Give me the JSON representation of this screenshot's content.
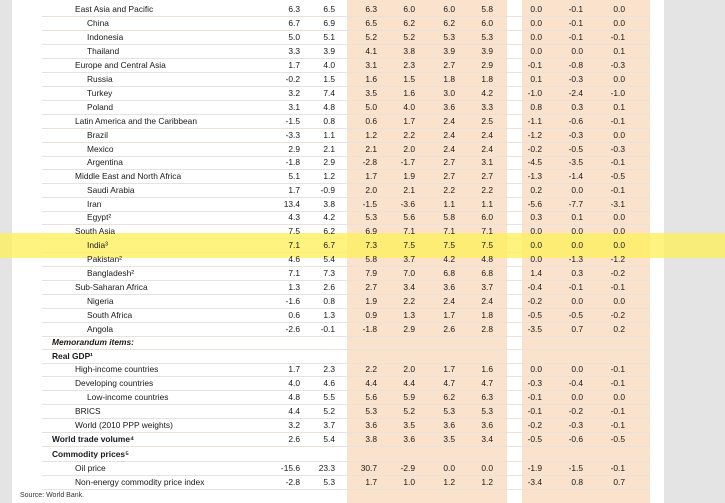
{
  "rows": [
    {
      "label": "East Asia and Pacific",
      "indent": 1,
      "style": "",
      "values": [
        "6.3",
        "6.5",
        "6.3",
        "6.0",
        "6.0",
        "5.8",
        "0.0",
        "-0.1",
        "0.0"
      ]
    },
    {
      "label": "China",
      "indent": 2,
      "style": "",
      "values": [
        "6.7",
        "6.9",
        "6.5",
        "6.2",
        "6.2",
        "6.0",
        "0.0",
        "-0.1",
        "0.0"
      ]
    },
    {
      "label": "Indonesia",
      "indent": 2,
      "style": "",
      "values": [
        "5.0",
        "5.1",
        "5.2",
        "5.2",
        "5.3",
        "5.3",
        "0.0",
        "-0.1",
        "-0.1"
      ]
    },
    {
      "label": "Thailand",
      "indent": 2,
      "style": "",
      "values": [
        "3.3",
        "3.9",
        "4.1",
        "3.8",
        "3.9",
        "3.9",
        "0.0",
        "0.0",
        "0.1"
      ]
    },
    {
      "label": "Europe and Central Asia",
      "indent": 1,
      "style": "",
      "values": [
        "1.7",
        "4.0",
        "3.1",
        "2.3",
        "2.7",
        "2.9",
        "-0.1",
        "-0.8",
        "-0.3"
      ]
    },
    {
      "label": "Russia",
      "indent": 2,
      "style": "",
      "values": [
        "-0.2",
        "1.5",
        "1.6",
        "1.5",
        "1.8",
        "1.8",
        "0.1",
        "-0.3",
        "0.0"
      ]
    },
    {
      "label": "Turkey",
      "indent": 2,
      "style": "",
      "values": [
        "3.2",
        "7.4",
        "3.5",
        "1.6",
        "3.0",
        "4.2",
        "-1.0",
        "-2.4",
        "-1.0"
      ]
    },
    {
      "label": "Poland",
      "indent": 2,
      "style": "",
      "values": [
        "3.1",
        "4.8",
        "5.0",
        "4.0",
        "3.6",
        "3.3",
        "0.8",
        "0.3",
        "0.1"
      ]
    },
    {
      "label": "Latin America and the Caribbean",
      "indent": 1,
      "style": "",
      "values": [
        "-1.5",
        "0.8",
        "0.6",
        "1.7",
        "2.4",
        "2.5",
        "-1.1",
        "-0.6",
        "-0.1"
      ]
    },
    {
      "label": "Brazil",
      "indent": 2,
      "style": "",
      "values": [
        "-3.3",
        "1.1",
        "1.2",
        "2.2",
        "2.4",
        "2.4",
        "-1.2",
        "-0.3",
        "0.0"
      ]
    },
    {
      "label": "Mexico",
      "indent": 2,
      "style": "",
      "values": [
        "2.9",
        "2.1",
        "2.1",
        "2.0",
        "2.4",
        "2.4",
        "-0.2",
        "-0.5",
        "-0.3"
      ]
    },
    {
      "label": "Argentina",
      "indent": 2,
      "style": "",
      "values": [
        "-1.8",
        "2.9",
        "-2.8",
        "-1.7",
        "2.7",
        "3.1",
        "-4.5",
        "-3.5",
        "-0.1"
      ]
    },
    {
      "label": "Middle East and North Africa",
      "indent": 1,
      "style": "",
      "values": [
        "5.1",
        "1.2",
        "1.7",
        "1.9",
        "2.7",
        "2.7",
        "-1.3",
        "-1.4",
        "-0.5"
      ]
    },
    {
      "label": "Saudi Arabia",
      "indent": 2,
      "style": "",
      "values": [
        "1.7",
        "-0.9",
        "2.0",
        "2.1",
        "2.2",
        "2.2",
        "0.2",
        "0.0",
        "-0.1"
      ]
    },
    {
      "label": "Iran",
      "indent": 2,
      "style": "",
      "values": [
        "13.4",
        "3.8",
        "-1.5",
        "-3.6",
        "1.1",
        "1.1",
        "-5.6",
        "-7.7",
        "-3.1"
      ]
    },
    {
      "label": "Egypt²",
      "indent": 2,
      "style": "",
      "values": [
        "4.3",
        "4.2",
        "5.3",
        "5.6",
        "5.8",
        "6.0",
        "0.3",
        "0.1",
        "0.0"
      ]
    },
    {
      "label": "South Asia",
      "indent": 1,
      "style": "",
      "values": [
        "7.5",
        "6.2",
        "6.9",
        "7.1",
        "7.1",
        "7.1",
        "0.0",
        "0.0",
        "0.0"
      ]
    },
    {
      "label": "India³",
      "indent": 2,
      "style": "",
      "values": [
        "7.1",
        "6.7",
        "7.3",
        "7.5",
        "7.5",
        "7.5",
        "0.0",
        "0.0",
        "0.0"
      ]
    },
    {
      "label": "Pakistan²",
      "indent": 2,
      "style": "",
      "values": [
        "4.6",
        "5.4",
        "5.8",
        "3.7",
        "4.2",
        "4.8",
        "0.0",
        "-1.3",
        "-1.2"
      ]
    },
    {
      "label": "Bangladesh²",
      "indent": 2,
      "style": "",
      "values": [
        "7.1",
        "7.3",
        "7.9",
        "7.0",
        "6.8",
        "6.8",
        "1.4",
        "0.3",
        "-0.2"
      ]
    },
    {
      "label": "Sub-Saharan Africa",
      "indent": 1,
      "style": "",
      "values": [
        "1.3",
        "2.6",
        "2.7",
        "3.4",
        "3.6",
        "3.7",
        "-0.4",
        "-0.1",
        "-0.1"
      ]
    },
    {
      "label": "Nigeria",
      "indent": 2,
      "style": "",
      "values": [
        "-1.6",
        "0.8",
        "1.9",
        "2.2",
        "2.4",
        "2.4",
        "-0.2",
        "0.0",
        "0.0"
      ]
    },
    {
      "label": "South Africa",
      "indent": 2,
      "style": "",
      "values": [
        "0.6",
        "1.3",
        "0.9",
        "1.3",
        "1.7",
        "1.8",
        "-0.5",
        "-0.5",
        "-0.2"
      ]
    },
    {
      "label": "Angola",
      "indent": 2,
      "style": "",
      "values": [
        "-2.6",
        "-0.1",
        "-1.8",
        "2.9",
        "2.6",
        "2.8",
        "-3.5",
        "0.7",
        "0.2"
      ]
    },
    {
      "label": "Memorandum items:",
      "indent": 0,
      "style": "bold",
      "values": []
    },
    {
      "label": "Real GDP¹",
      "indent": 0,
      "style": "boldplain",
      "values": []
    },
    {
      "label": "High-income countries",
      "indent": 1,
      "style": "",
      "values": [
        "1.7",
        "2.3",
        "2.2",
        "2.0",
        "1.7",
        "1.6",
        "0.0",
        "0.0",
        "-0.1"
      ]
    },
    {
      "label": "Developing countries",
      "indent": 1,
      "style": "",
      "values": [
        "4.0",
        "4.6",
        "4.4",
        "4.4",
        "4.7",
        "4.7",
        "-0.3",
        "-0.4",
        "-0.1"
      ]
    },
    {
      "label": "Low-income countries",
      "indent": 2,
      "style": "",
      "values": [
        "4.8",
        "5.5",
        "5.6",
        "5.9",
        "6.2",
        "6.3",
        "-0.1",
        "0.0",
        "0.0"
      ]
    },
    {
      "label": "BRICS",
      "indent": 1,
      "style": "",
      "values": [
        "4.4",
        "5.2",
        "5.3",
        "5.2",
        "5.3",
        "5.3",
        "-0.1",
        "-0.2",
        "-0.1"
      ]
    },
    {
      "label": "World (2010 PPP weights)",
      "indent": 1,
      "style": "",
      "values": [
        "3.2",
        "3.7",
        "3.6",
        "3.5",
        "3.6",
        "3.6",
        "-0.2",
        "-0.3",
        "-0.1"
      ]
    },
    {
      "label": "World trade volume⁴",
      "indent": 0,
      "style": "boldplain",
      "values": [
        "2.6",
        "5.4",
        "3.8",
        "3.6",
        "3.5",
        "3.4",
        "-0.5",
        "-0.6",
        "-0.5"
      ]
    },
    {
      "label": "Commodity prices⁵",
      "indent": 0,
      "style": "boldplain",
      "values": []
    },
    {
      "label": "Oil price",
      "indent": 1,
      "style": "",
      "values": [
        "-15.6",
        "23.3",
        "30.7",
        "-2.9",
        "0.0",
        "0.0",
        "-1.9",
        "-1.5",
        "-0.1"
      ]
    },
    {
      "label": "Non-energy commodity price index",
      "indent": 1,
      "style": "",
      "values": [
        "-2.8",
        "5.3",
        "1.7",
        "1.0",
        "1.2",
        "1.2",
        "-3.4",
        "0.8",
        "0.7"
      ]
    }
  ],
  "source": "Source: World Bank."
}
